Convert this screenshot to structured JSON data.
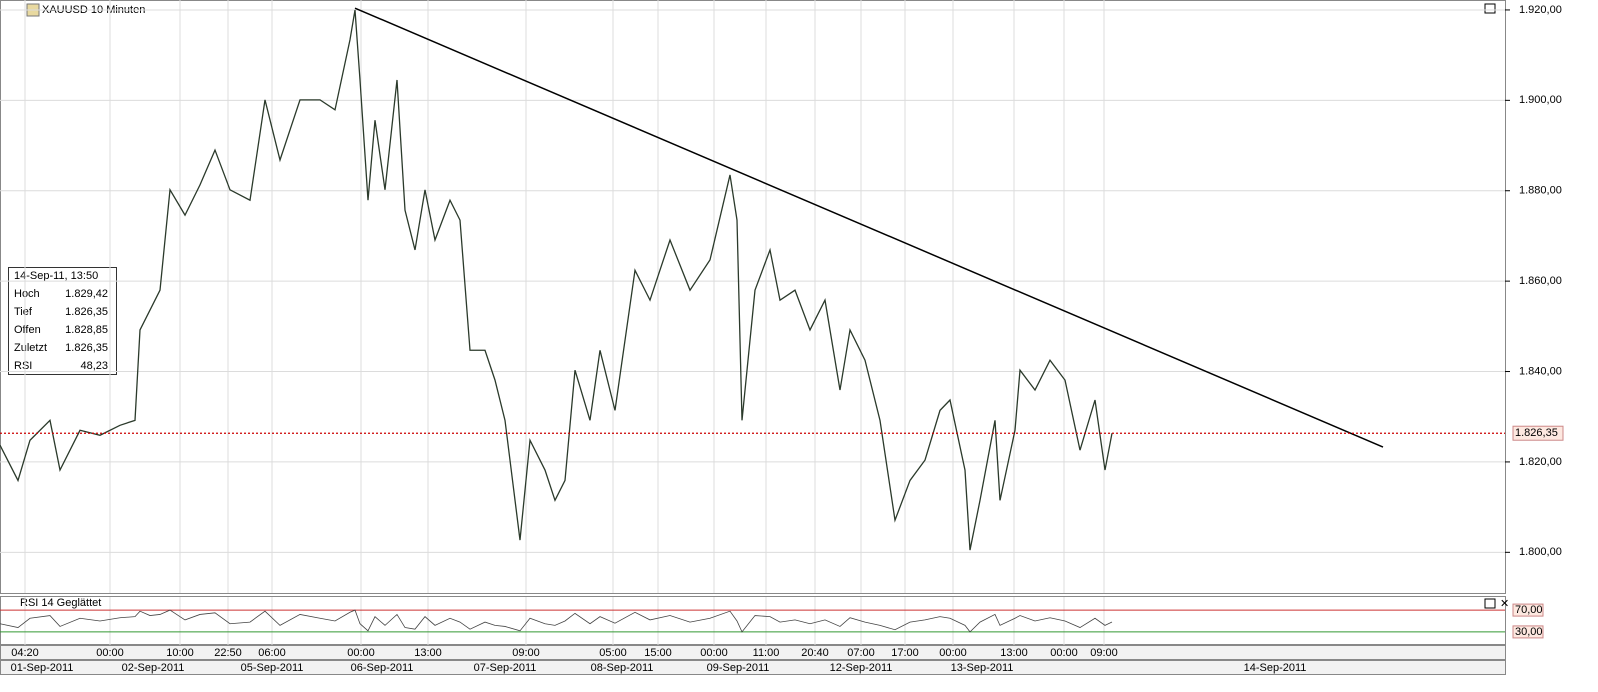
{
  "chart_data": {
    "type": "line",
    "title": "XAUUSD 10 Minuten",
    "x": [
      0,
      3.6,
      6,
      10,
      12,
      16,
      20,
      24,
      27,
      28,
      30,
      32,
      34,
      37,
      40,
      43,
      46,
      50,
      53,
      56,
      60,
      64,
      67,
      70,
      71,
      72,
      73.6,
      75,
      77,
      79.4,
      81,
      83,
      85,
      87,
      90,
      92,
      94,
      97,
      99,
      101,
      104,
      106,
      109,
      111,
      113,
      115,
      118,
      120,
      123,
      127,
      130,
      134,
      138,
      142,
      146,
      147.4,
      148.4,
      151,
      154,
      156,
      159,
      162,
      165,
      168,
      170,
      173,
      176,
      179,
      182,
      185,
      188,
      190,
      193,
      194,
      196,
      199,
      200,
      203,
      204,
      207,
      210,
      213,
      216,
      219,
      221,
      222.4
    ],
    "series": [
      {
        "name": "XAUUSD",
        "color": "#2b3a2b",
        "values": [
          1823.7,
          1815.9,
          1824.8,
          1829.2,
          1818.2,
          1827.0,
          1825.9,
          1828.1,
          1829.2,
          1849.2,
          1853.6,
          1858.0,
          1880.2,
          1874.6,
          1881.3,
          1889.0,
          1880.2,
          1877.9,
          1900.1,
          1886.8,
          1900.1,
          1900.1,
          1897.9,
          1913.4,
          1920.0,
          1904.5,
          1877.9,
          1895.6,
          1880.2,
          1904.5,
          1875.7,
          1866.9,
          1880.2,
          1869.1,
          1877.9,
          1873.5,
          1844.7,
          1844.7,
          1838.1,
          1829.2,
          1802.7,
          1824.8,
          1818.2,
          1811.5,
          1815.9,
          1840.3,
          1829.2,
          1844.7,
          1831.4,
          1862.4,
          1855.8,
          1869.1,
          1858.0,
          1864.7,
          1883.5,
          1873.5,
          1829.2,
          1858.0,
          1866.9,
          1855.8,
          1858.0,
          1849.2,
          1855.8,
          1835.9,
          1849.2,
          1842.5,
          1829.2,
          1807.1,
          1815.9,
          1820.4,
          1831.4,
          1833.7,
          1818.2,
          1800.5,
          1811.5,
          1829.2,
          1811.5,
          1827.0,
          1840.3,
          1835.9,
          1842.5,
          1838.1,
          1822.6,
          1833.7,
          1818.2,
          1826.35
        ]
      }
    ],
    "xlim": [
      0,
      301
    ],
    "ylim": [
      1791,
      1922.2
    ],
    "yticks": [
      {
        "value": 1800,
        "label": "1.800,00"
      },
      {
        "value": 1820,
        "label": "1.820,00"
      },
      {
        "value": 1840,
        "label": "1.840,00"
      },
      {
        "value": 1860,
        "label": "1.860,00"
      },
      {
        "value": 1880,
        "label": "1.880,00"
      },
      {
        "value": 1900,
        "label": "1.900,00"
      },
      {
        "value": 1920,
        "label": "1.920,00"
      }
    ],
    "xticks": [
      {
        "value": 5,
        "label": "04:20"
      },
      {
        "value": 22,
        "label": "00:00"
      },
      {
        "value": 36,
        "label": "10:00"
      },
      {
        "value": 45.6,
        "label": "22:50"
      },
      {
        "value": 54.4,
        "label": "06:00"
      },
      {
        "value": 72.2,
        "label": "00:00"
      },
      {
        "value": 85.6,
        "label": "13:00"
      },
      {
        "value": 105.2,
        "label": "09:00"
      },
      {
        "value": 122.6,
        "label": "05:00"
      },
      {
        "value": 131.6,
        "label": "15:00"
      },
      {
        "value": 142.8,
        "label": "00:00"
      },
      {
        "value": 153.2,
        "label": "11:00"
      },
      {
        "value": 163,
        "label": "20:40"
      },
      {
        "value": 172.2,
        "label": "07:00"
      },
      {
        "value": 181,
        "label": "17:00"
      },
      {
        "value": 190.6,
        "label": "00:00"
      },
      {
        "value": 202.8,
        "label": "13:00"
      },
      {
        "value": 212.8,
        "label": "00:00"
      },
      {
        "value": 220.8,
        "label": "09:00"
      }
    ],
    "xticks_dates": [
      {
        "value": 8.4,
        "label": "01-Sep-2011"
      },
      {
        "value": 30.6,
        "label": "02-Sep-2011"
      },
      {
        "value": 54.4,
        "label": "05-Sep-2011"
      },
      {
        "value": 76.4,
        "label": "06-Sep-2011"
      },
      {
        "value": 101,
        "label": "07-Sep-2011"
      },
      {
        "value": 124.4,
        "label": "08-Sep-2011"
      },
      {
        "value": 147.6,
        "label": "09-Sep-2011"
      },
      {
        "value": 172.2,
        "label": "12-Sep-2011"
      },
      {
        "value": 196.4,
        "label": "13-Sep-2011"
      },
      {
        "value": 255,
        "label": "14-Sep-2011"
      }
    ],
    "grid": true,
    "current_price": {
      "value": 1826.35,
      "label": "1.826,35",
      "color": "#cc0000"
    },
    "trendline": {
      "x": [
        71,
        276.6
      ],
      "values": [
        1920.4,
        1823.3
      ],
      "color": "#000000"
    },
    "info_box": {
      "date": "14-Sep-11, 13:50",
      "rows": [
        [
          "Hoch",
          "1.829,42"
        ],
        [
          "Tief",
          "1.826,35"
        ],
        [
          "Offen",
          "1.828,85"
        ],
        [
          "Zuletzt",
          "1.826,35"
        ],
        [
          "RSI",
          "48,23"
        ]
      ]
    },
    "rsi": {
      "title": "RSI 14 Geglättet",
      "color": "#444444",
      "ylim": [
        6,
        94
      ],
      "yticks": [
        {
          "value": 70,
          "label": "70,00"
        },
        {
          "value": 30,
          "label": "30,00"
        }
      ],
      "values": [
        45,
        38,
        55,
        60,
        40,
        55,
        50,
        56,
        58,
        68,
        60,
        62,
        70,
        52,
        62,
        65,
        45,
        48,
        68,
        42,
        62,
        55,
        50,
        66,
        70,
        45,
        32,
        58,
        42,
        62,
        38,
        35,
        58,
        42,
        55,
        48,
        35,
        48,
        42,
        40,
        32,
        55,
        45,
        42,
        50,
        64,
        45,
        58,
        46,
        66,
        52,
        60,
        48,
        55,
        68,
        50,
        30,
        60,
        58,
        48,
        52,
        45,
        52,
        40,
        56,
        48,
        42,
        34,
        48,
        52,
        58,
        55,
        42,
        30,
        48,
        62,
        42,
        55,
        60,
        50,
        56,
        50,
        38,
        55,
        42,
        48.23
      ]
    }
  }
}
